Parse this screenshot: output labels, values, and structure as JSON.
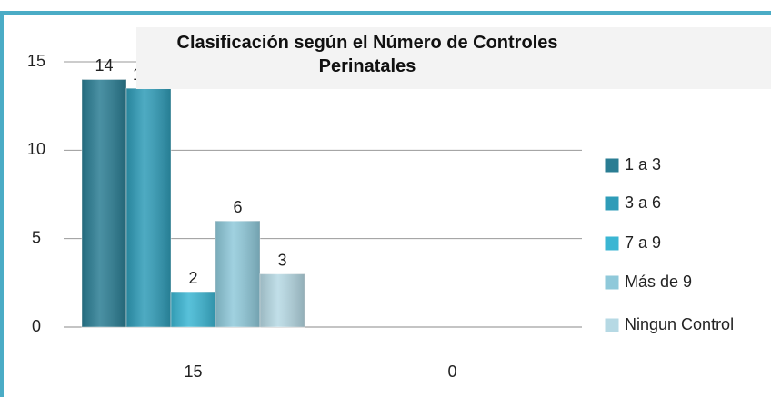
{
  "chart_data": {
    "type": "bar",
    "title": "Clasificación según el Número de Controles Perinatales",
    "categories": [
      "15",
      "0"
    ],
    "series": [
      {
        "name": "1 a 3",
        "color": "#2a7d93",
        "values": [
          14,
          null
        ]
      },
      {
        "name": "3 a 6",
        "color": "#2f9cb8",
        "values": [
          13.5,
          null
        ]
      },
      {
        "name": "7 a 9",
        "color": "#3bb6d3",
        "values": [
          2,
          null
        ]
      },
      {
        "name": "Más de  9",
        "color": "#8fc9da",
        "values": [
          6,
          null
        ]
      },
      {
        "name": "Ningun Control",
        "color": "#b6d9e4",
        "values": [
          3,
          null
        ]
      }
    ],
    "ylim": [
      0,
      15
    ],
    "yticks": [
      0,
      5,
      10,
      15
    ],
    "grid": true,
    "legend": "right"
  }
}
